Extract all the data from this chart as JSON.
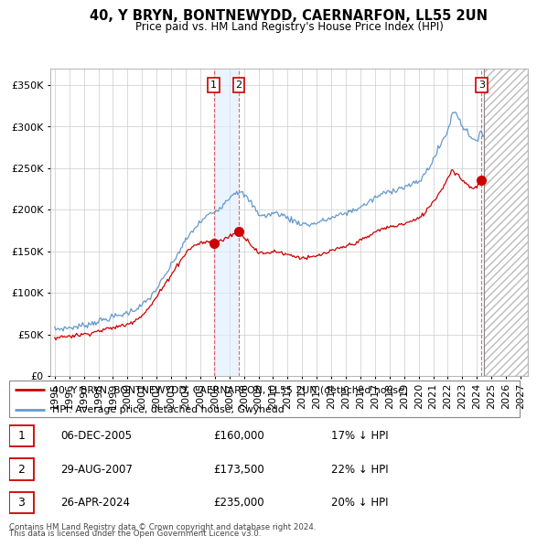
{
  "title": "40, Y BRYN, BONTNEWYDD, CAERNARFON, LL55 2UN",
  "subtitle": "Price paid vs. HM Land Registry's House Price Index (HPI)",
  "ylim": [
    0,
    370000
  ],
  "xlim_start": 1994.7,
  "xlim_end": 2027.5,
  "future_start": 2024.5,
  "sales": [
    {
      "num": 1,
      "date": "06-DEC-2005",
      "price": 160000,
      "year": 2005.92,
      "pct": "17% ↓ HPI"
    },
    {
      "num": 2,
      "date": "29-AUG-2007",
      "price": 173500,
      "year": 2007.65,
      "pct": "22% ↓ HPI"
    },
    {
      "num": 3,
      "date": "26-APR-2024",
      "price": 235000,
      "year": 2024.32,
      "pct": "20% ↓ HPI"
    }
  ],
  "legend_line1": "40, Y BRYN, BONTNEWYDD, CAERNARFON, LL55 2UN (detached house)",
  "legend_line2": "HPI: Average price, detached house, Gwynedd",
  "footer1": "Contains HM Land Registry data © Crown copyright and database right 2024.",
  "footer2": "This data is licensed under the Open Government Licence v3.0.",
  "red_color": "#cc0000",
  "blue_color": "#6699cc",
  "bg_color": "#ffffff",
  "grid_color": "#cccccc",
  "hpi_anchors": [
    [
      1995.0,
      56000
    ],
    [
      1995.5,
      57000
    ],
    [
      1996.0,
      58000
    ],
    [
      1996.5,
      59000
    ],
    [
      1997.0,
      61000
    ],
    [
      1997.5,
      63000
    ],
    [
      1998.0,
      66000
    ],
    [
      1998.5,
      68000
    ],
    [
      1999.0,
      71000
    ],
    [
      1999.5,
      73000
    ],
    [
      2000.0,
      76000
    ],
    [
      2000.5,
      80000
    ],
    [
      2001.0,
      85000
    ],
    [
      2001.5,
      93000
    ],
    [
      2002.0,
      105000
    ],
    [
      2002.5,
      118000
    ],
    [
      2003.0,
      133000
    ],
    [
      2003.5,
      148000
    ],
    [
      2004.0,
      163000
    ],
    [
      2004.5,
      175000
    ],
    [
      2005.0,
      185000
    ],
    [
      2005.5,
      193000
    ],
    [
      2006.0,
      198000
    ],
    [
      2006.5,
      205000
    ],
    [
      2007.0,
      215000
    ],
    [
      2007.3,
      220000
    ],
    [
      2007.5,
      222000
    ],
    [
      2008.0,
      218000
    ],
    [
      2008.5,
      208000
    ],
    [
      2009.0,
      195000
    ],
    [
      2009.5,
      192000
    ],
    [
      2010.0,
      196000
    ],
    [
      2010.5,
      195000
    ],
    [
      2011.0,
      190000
    ],
    [
      2011.5,
      186000
    ],
    [
      2012.0,
      183000
    ],
    [
      2012.5,
      182000
    ],
    [
      2013.0,
      184000
    ],
    [
      2013.5,
      187000
    ],
    [
      2014.0,
      190000
    ],
    [
      2014.5,
      193000
    ],
    [
      2015.0,
      196000
    ],
    [
      2015.5,
      199000
    ],
    [
      2016.0,
      203000
    ],
    [
      2016.5,
      208000
    ],
    [
      2017.0,
      214000
    ],
    [
      2017.5,
      219000
    ],
    [
      2018.0,
      222000
    ],
    [
      2018.5,
      225000
    ],
    [
      2019.0,
      227000
    ],
    [
      2019.5,
      230000
    ],
    [
      2020.0,
      233000
    ],
    [
      2020.5,
      245000
    ],
    [
      2021.0,
      260000
    ],
    [
      2021.5,
      278000
    ],
    [
      2022.0,
      295000
    ],
    [
      2022.3,
      315000
    ],
    [
      2022.5,
      318000
    ],
    [
      2022.8,
      310000
    ],
    [
      2023.0,
      300000
    ],
    [
      2023.3,
      295000
    ],
    [
      2023.5,
      290000
    ],
    [
      2023.8,
      285000
    ],
    [
      2024.0,
      280000
    ],
    [
      2024.32,
      294000
    ],
    [
      2024.5,
      290000
    ]
  ],
  "prop_anchors": [
    [
      1995.0,
      46000
    ],
    [
      1995.5,
      47000
    ],
    [
      1996.0,
      48000
    ],
    [
      1996.5,
      49000
    ],
    [
      1997.0,
      50000
    ],
    [
      1997.5,
      52000
    ],
    [
      1998.0,
      54000
    ],
    [
      1998.5,
      56000
    ],
    [
      1999.0,
      58000
    ],
    [
      1999.5,
      60000
    ],
    [
      2000.0,
      62000
    ],
    [
      2000.5,
      67000
    ],
    [
      2001.0,
      73000
    ],
    [
      2001.5,
      82000
    ],
    [
      2002.0,
      95000
    ],
    [
      2002.5,
      108000
    ],
    [
      2003.0,
      122000
    ],
    [
      2003.5,
      135000
    ],
    [
      2004.0,
      148000
    ],
    [
      2004.5,
      156000
    ],
    [
      2005.0,
      160000
    ],
    [
      2005.5,
      161000
    ],
    [
      2005.92,
      160000
    ],
    [
      2006.0,
      161000
    ],
    [
      2006.5,
      163000
    ],
    [
      2007.0,
      168000
    ],
    [
      2007.5,
      173000
    ],
    [
      2007.65,
      173500
    ],
    [
      2008.0,
      168000
    ],
    [
      2008.5,
      158000
    ],
    [
      2009.0,
      148000
    ],
    [
      2009.5,
      147000
    ],
    [
      2010.0,
      150000
    ],
    [
      2010.5,
      149000
    ],
    [
      2011.0,
      146000
    ],
    [
      2011.5,
      144000
    ],
    [
      2012.0,
      142000
    ],
    [
      2012.5,
      142000
    ],
    [
      2013.0,
      144000
    ],
    [
      2013.5,
      147000
    ],
    [
      2014.0,
      150000
    ],
    [
      2014.5,
      153000
    ],
    [
      2015.0,
      156000
    ],
    [
      2015.5,
      159000
    ],
    [
      2016.0,
      163000
    ],
    [
      2016.5,
      167000
    ],
    [
      2017.0,
      173000
    ],
    [
      2017.5,
      177000
    ],
    [
      2018.0,
      179000
    ],
    [
      2018.5,
      181000
    ],
    [
      2019.0,
      183000
    ],
    [
      2019.5,
      186000
    ],
    [
      2020.0,
      189000
    ],
    [
      2020.5,
      198000
    ],
    [
      2021.0,
      210000
    ],
    [
      2021.5,
      222000
    ],
    [
      2022.0,
      238000
    ],
    [
      2022.3,
      248000
    ],
    [
      2022.5,
      245000
    ],
    [
      2022.8,
      240000
    ],
    [
      2023.0,
      235000
    ],
    [
      2023.3,
      232000
    ],
    [
      2023.5,
      228000
    ],
    [
      2023.8,
      225000
    ],
    [
      2024.0,
      228000
    ],
    [
      2024.32,
      235000
    ],
    [
      2024.5,
      230000
    ]
  ]
}
